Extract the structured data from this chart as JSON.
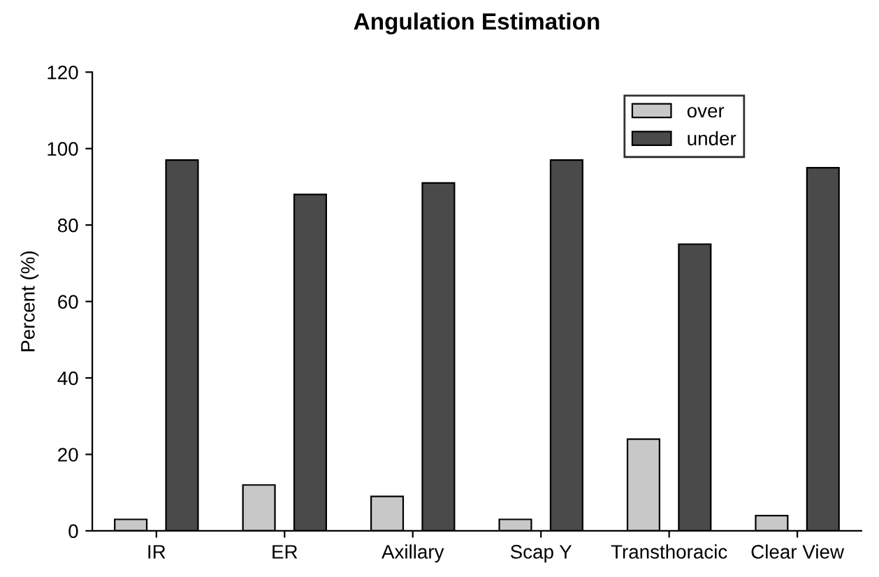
{
  "chart_data": {
    "type": "bar",
    "title": "Angulation Estimation",
    "ylabel": "Percent (%)",
    "categories": [
      "IR",
      "ER",
      "Axillary",
      "Scap Y",
      "Transthoracic",
      "Clear View"
    ],
    "series": [
      {
        "name": "over",
        "color": "#c8c8c8",
        "values": [
          3,
          12,
          9,
          3,
          24,
          4
        ]
      },
      {
        "name": "under",
        "color": "#4a4a4a",
        "values": [
          97,
          88,
          91,
          97,
          75,
          95
        ]
      }
    ],
    "ylim": [
      0,
      120
    ],
    "yticks": [
      0,
      20,
      40,
      60,
      80,
      100,
      120
    ],
    "legend": "top right",
    "grid": false
  }
}
